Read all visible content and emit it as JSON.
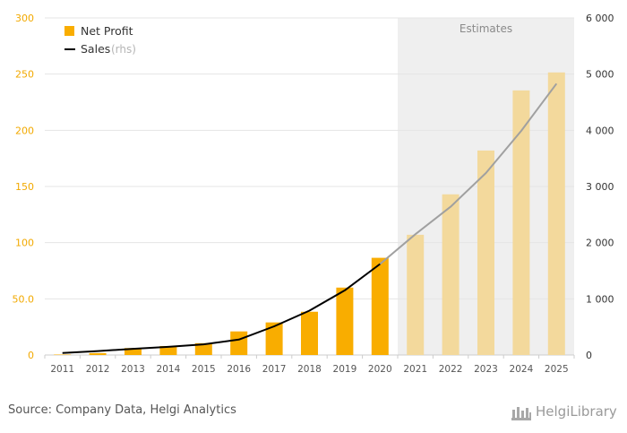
{
  "chart_data": {
    "type": "bar",
    "categories": [
      "2011",
      "2012",
      "2013",
      "2014",
      "2015",
      "2016",
      "2017",
      "2018",
      "2019",
      "2020",
      "2021",
      "2022",
      "2023",
      "2024",
      "2025"
    ],
    "series": [
      {
        "name": "Net Profit",
        "type": "bar",
        "axis": "left",
        "color": "#f9ad00",
        "estimate_color": "#f3d99c",
        "values": [
          0.4,
          1.7,
          6.2,
          8.0,
          10.5,
          21.0,
          29.0,
          38.5,
          60.0,
          86.5,
          107.0,
          143.0,
          182.0,
          235.5,
          251.5
        ]
      },
      {
        "name": "Sales",
        "name_suffix": "(rhs)",
        "type": "line",
        "axis": "right",
        "color": "#000000",
        "estimate_color": "#a0a0a0",
        "values": [
          35,
          70,
          110,
          145,
          190,
          275,
          510,
          790,
          1150,
          1620,
          2150,
          2640,
          3240,
          3990,
          4830
        ]
      }
    ],
    "y_left": {
      "range": [
        0,
        300
      ],
      "ticks": [
        0,
        50,
        100,
        150,
        200,
        250,
        300
      ],
      "tick_labels": [
        "0",
        "50.0",
        "100",
        "150",
        "200",
        "250",
        "300"
      ]
    },
    "y_right": {
      "range": [
        0,
        6000
      ],
      "ticks": [
        0,
        1000,
        2000,
        3000,
        4000,
        5000,
        6000
      ],
      "tick_labels": [
        "0",
        "1 000",
        "2 000",
        "3 000",
        "4 000",
        "5 000",
        "6 000"
      ]
    },
    "estimates": {
      "label": "Estimates",
      "from": "2021",
      "to": "2025",
      "band_color": "#efefef"
    },
    "legend": {
      "position": "top-left"
    },
    "grid": true,
    "source": "Source: Company Data, Helgi Analytics"
  },
  "branding": {
    "logo_text": "HelgiLibrary"
  }
}
